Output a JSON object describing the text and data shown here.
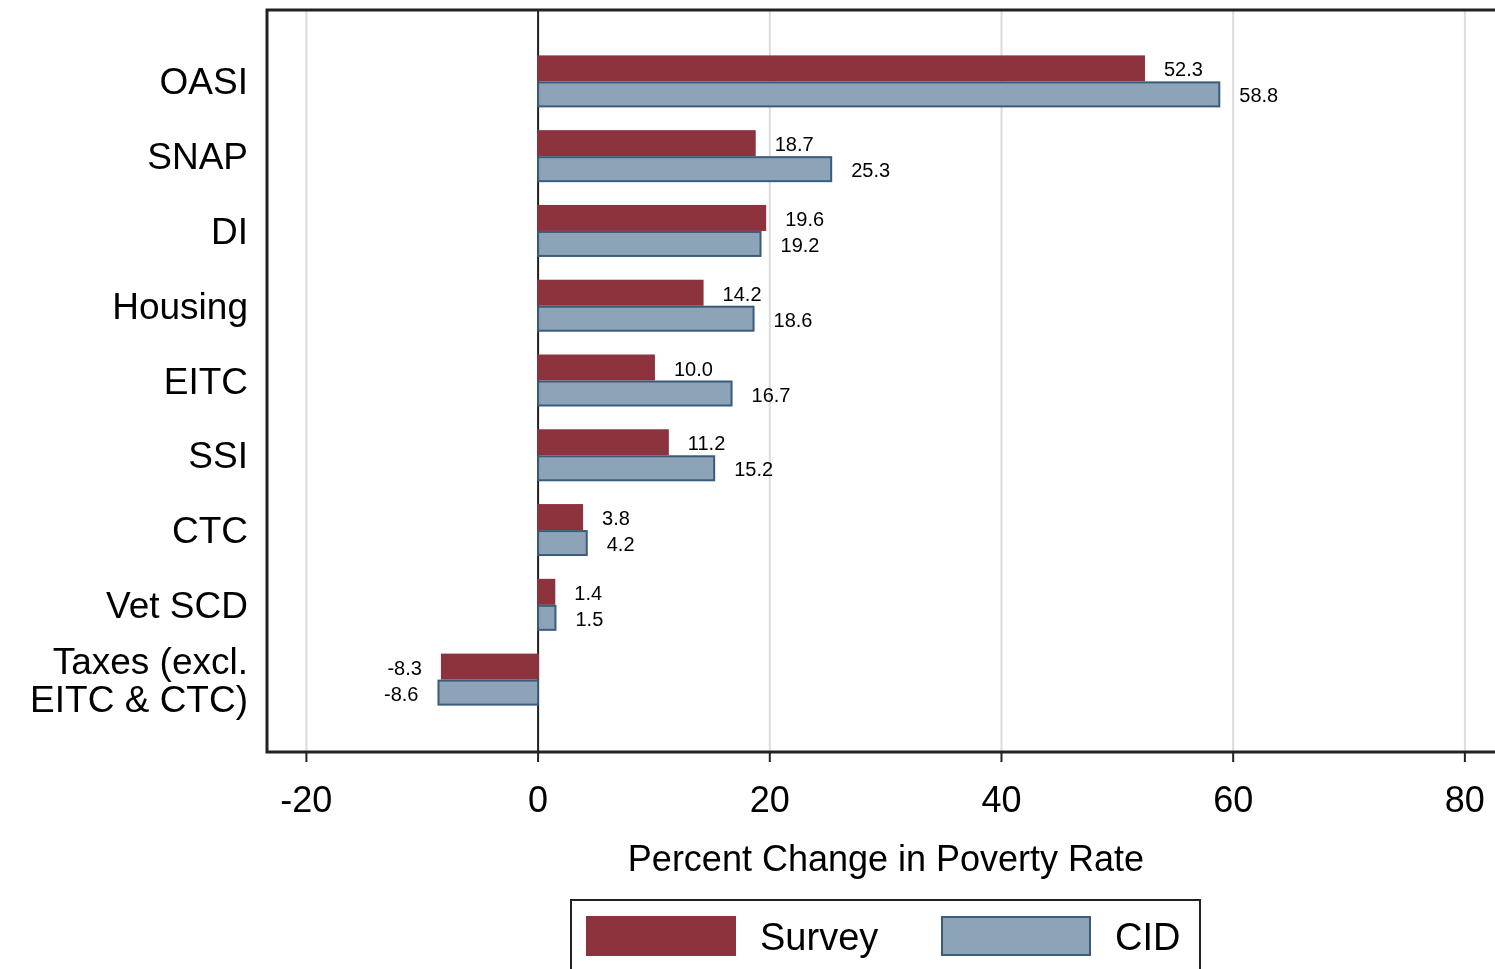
{
  "chart_data": {
    "type": "bar",
    "orientation": "horizontal",
    "xlabel": "Percent Change in Poverty Rate",
    "categories": [
      "OASI",
      "SNAP",
      "DI",
      "Housing",
      "EITC",
      "SSI",
      "CTC",
      "Vet SCD",
      "Taxes (excl. EITC & CTC)"
    ],
    "series": [
      {
        "name": "Survey",
        "color": "#8c333d",
        "values": [
          52.3,
          18.7,
          19.6,
          14.2,
          10.0,
          11.2,
          3.8,
          1.4,
          -8.3
        ],
        "value_labels": [
          "52.3",
          "18.7",
          "19.6",
          "14.2",
          "10.0",
          "11.2",
          "3.8",
          "1.4",
          "-8.3"
        ]
      },
      {
        "name": "CID",
        "color": "#8ca3b8",
        "values": [
          58.8,
          25.3,
          19.2,
          18.6,
          16.7,
          15.2,
          4.2,
          1.5,
          -8.6
        ],
        "value_labels": [
          "58.8",
          "25.3",
          "19.2",
          "18.6",
          "16.7",
          "15.2",
          "4.2",
          "1.5",
          "-8.6"
        ]
      }
    ],
    "xlim": [
      -23.4,
      82.6
    ],
    "xticks": [
      -20,
      0,
      20,
      40,
      60,
      80
    ],
    "grid": "x",
    "legend": "bottom",
    "ref_lines": [
      {
        "axis": "x",
        "value": 0
      }
    ]
  }
}
